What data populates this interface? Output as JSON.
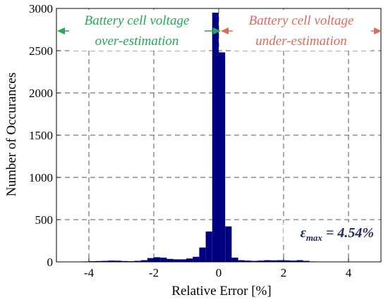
{
  "chart_data": {
    "type": "bar",
    "xlabel": "Relative Error [%]",
    "ylabel": "Number of Occurances",
    "xlim": [
      -5,
      5
    ],
    "ylim": [
      0,
      3000
    ],
    "x_ticks": [
      -4,
      -2,
      0,
      2,
      4
    ],
    "x_tick_labels": [
      "-4",
      "-2",
      "0",
      "2",
      "4"
    ],
    "y_ticks": [
      0,
      500,
      1000,
      1500,
      2000,
      2500,
      3000
    ],
    "y_tick_labels": [
      "0",
      "500",
      "1000",
      "1500",
      "2000",
      "2500",
      "3000"
    ],
    "grid": true,
    "grid_style": "dashed",
    "bar_color": "#000080",
    "bin_width": 0.2,
    "bin_centers": [
      -4.3,
      -4.1,
      -3.9,
      -3.7,
      -3.5,
      -3.3,
      -3.1,
      -2.9,
      -2.7,
      -2.5,
      -2.3,
      -2.1,
      -1.9,
      -1.7,
      -1.5,
      -1.3,
      -1.1,
      -0.9,
      -0.7,
      -0.5,
      -0.3,
      -0.1,
      0.1,
      0.3,
      0.5,
      0.7,
      0.9,
      1.1,
      1.3,
      1.5,
      1.7,
      1.9,
      2.1,
      2.3,
      2.5,
      2.7,
      2.9,
      3.1,
      3.3,
      3.5,
      3.7,
      3.9,
      4.1,
      4.3,
      4.5
    ],
    "values": [
      3,
      5,
      8,
      10,
      12,
      15,
      14,
      10,
      8,
      12,
      20,
      45,
      55,
      50,
      35,
      30,
      30,
      40,
      60,
      170,
      360,
      2950,
      2480,
      420,
      50,
      20,
      15,
      12,
      15,
      20,
      18,
      20,
      18,
      15,
      20,
      12,
      5,
      3,
      2,
      2,
      1,
      1,
      1,
      1,
      1
    ],
    "annotations": {
      "left_label_line1": "Battery cell voltage",
      "left_label_line2": "over-estimation",
      "left_color": "#22aa55",
      "right_label_line1": "Battery cell voltage",
      "right_label_line2": "under-estimation",
      "right_color": "#e06a5a",
      "max_error_symbol": "ε",
      "max_error_subscript": "max",
      "max_error_value": " = 4.54%",
      "max_error_color": "#1f2a5a"
    }
  }
}
